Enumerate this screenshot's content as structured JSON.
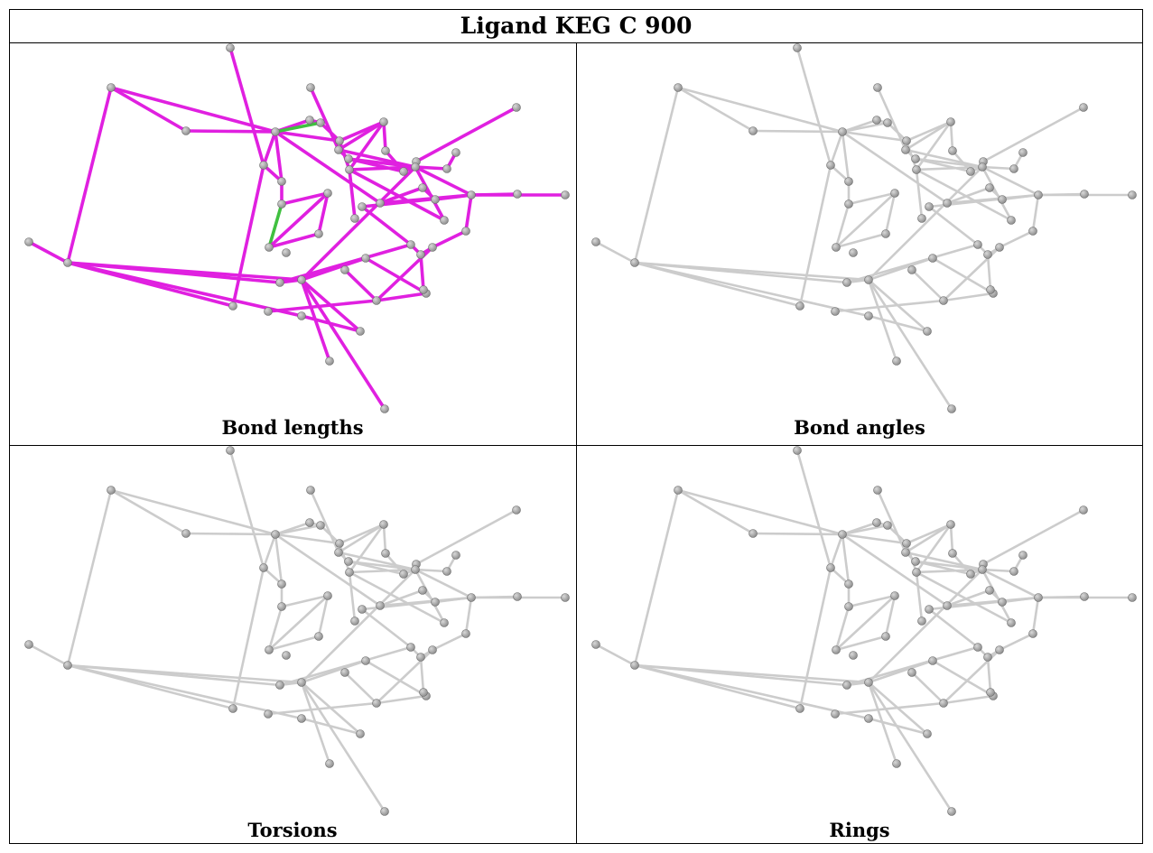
{
  "title": "Ligand KEG C 900",
  "panels": [
    {
      "caption": "Bond lengths",
      "style": "highlight"
    },
    {
      "caption": "Bond angles",
      "style": "plain"
    },
    {
      "caption": "Torsions",
      "style": "plain"
    },
    {
      "caption": "Rings",
      "style": "plain"
    }
  ],
  "colors": {
    "bond_default": "#cccccc",
    "bond_highlight": "#e020e0",
    "bond_flagged": "#40c040",
    "atom": "#8a8a8a"
  }
}
